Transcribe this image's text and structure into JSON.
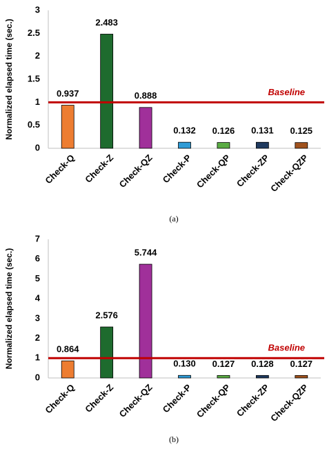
{
  "chart_data": [
    {
      "type": "bar",
      "ylabel": "Normalized elapsed time (sec.)",
      "categories": [
        "Check-Q",
        "Check-Z",
        "Check-QZ",
        "Check-P",
        "Check-QP",
        "Check-ZP",
        "Check-QZP"
      ],
      "values": [
        0.937,
        2.483,
        0.888,
        0.132,
        0.126,
        0.131,
        0.125
      ],
      "value_labels": [
        "0.937",
        "2.483",
        "0.888",
        "0.132",
        "0.126",
        "0.131",
        "0.125"
      ],
      "colors": [
        "#ed7d31",
        "#1e6b2e",
        "#a0309a",
        "#2e9bd6",
        "#5aac44",
        "#1f3a5f",
        "#a0521d"
      ],
      "ylim": [
        0,
        3
      ],
      "yticks": [
        0,
        0.5,
        1,
        1.5,
        2,
        2.5,
        3
      ],
      "baseline": {
        "value": 1,
        "label": "Baseline",
        "color": "#c00000"
      },
      "caption": "(a)"
    },
    {
      "type": "bar",
      "ylabel": "Normalized elapsed time (sec.)",
      "categories": [
        "Check-Q",
        "Check-Z",
        "Check-QZ",
        "Check-P",
        "Check-QP",
        "Check-ZP",
        "Check-QZP"
      ],
      "values": [
        0.864,
        2.576,
        5.744,
        0.13,
        0.127,
        0.128,
        0.127
      ],
      "value_labels": [
        "0.864",
        "2.576",
        "5.744",
        "0.130",
        "0.127",
        "0.128",
        "0.127"
      ],
      "colors": [
        "#ed7d31",
        "#1e6b2e",
        "#a0309a",
        "#2e9bd6",
        "#5aac44",
        "#1f3a5f",
        "#a0521d"
      ],
      "ylim": [
        0,
        7
      ],
      "yticks": [
        0,
        1,
        2,
        3,
        4,
        5,
        6,
        7
      ],
      "baseline": {
        "value": 1,
        "label": "Baseline",
        "color": "#c00000"
      },
      "caption": "(b)"
    }
  ]
}
